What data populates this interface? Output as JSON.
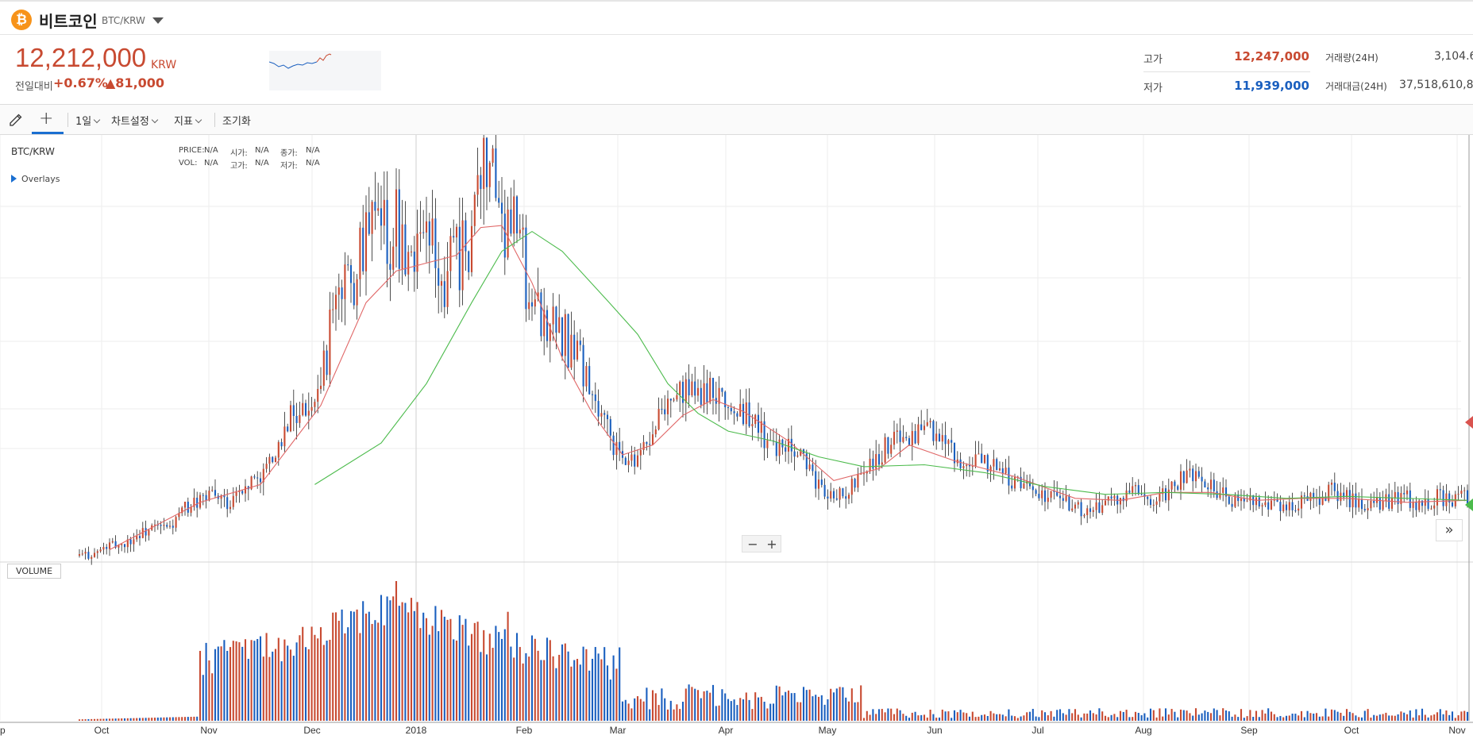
{
  "header": {
    "coin_name": "비트코인",
    "pair": "BTC/KRW",
    "logo_symbol": "₿"
  },
  "summary": {
    "price": "12,212,000",
    "unit": "KRW",
    "change_label": "전일대비",
    "change_pct": "+0.67%",
    "change_amt": "▲81,000",
    "high_label": "고가",
    "high_value": "12,247,000",
    "low_label": "저가",
    "low_value": "11,939,000",
    "volume_label": "거래량(24H)",
    "volume_value": "3,104.6",
    "amount_label": "거래대금(24H)",
    "amount_value": "37,518,610,8"
  },
  "toolbar": {
    "interval": "1일",
    "chart_settings": "차트설정",
    "indicators": "지표",
    "reset": "조기화"
  },
  "chart_panel": {
    "pair_label": "BTC/KRW",
    "overlays": "Overlays",
    "ohlc": {
      "price_label": "PRICE:",
      "price": "N/A",
      "open_label": "시가:",
      "open": "N/A",
      "close_label": "종가:",
      "close": "N/A",
      "vol_label": "VOL:",
      "vol": "N/A",
      "high_label": "고가:",
      "high": "N/A",
      "low_label": "저가:",
      "low": "N/A"
    },
    "zoom_out": "−",
    "zoom_in": "+",
    "scroll_right": "»",
    "volume_label": "VOLUME"
  },
  "colors": {
    "up": "#c84a31",
    "down": "#1a5fbf",
    "ma_short": "#e06666",
    "ma_long": "#4cbb4c",
    "grid": "#eeeeee"
  },
  "chart_data": {
    "type": "candlestick",
    "x_labels": [
      "ep",
      "Oct",
      "Nov",
      "Dec",
      "2018",
      "Feb",
      "Mar",
      "Apr",
      "May",
      "Jun",
      "Jul",
      "Aug",
      "Sep",
      "Oct",
      "Nov"
    ],
    "series": [
      {
        "type": "close-price (KRW millions)",
        "points": [
          [
            0,
            4.2
          ],
          [
            5,
            4.3
          ],
          [
            10,
            4.7
          ],
          [
            15,
            4.8
          ],
          [
            20,
            5.3
          ],
          [
            25,
            5.6
          ],
          [
            30,
            5.6
          ],
          [
            35,
            6.6
          ],
          [
            40,
            7.0
          ],
          [
            45,
            7.2
          ],
          [
            50,
            6.9
          ],
          [
            55,
            7.8
          ],
          [
            60,
            8.3
          ],
          [
            65,
            9.2
          ],
          [
            70,
            11.3
          ],
          [
            75,
            11.5
          ],
          [
            80,
            13.3
          ],
          [
            85,
            16.5
          ],
          [
            90,
            18.0
          ],
          [
            95,
            20.5
          ],
          [
            100,
            20.1
          ],
          [
            105,
            21.0
          ],
          [
            110,
            19.4
          ],
          [
            115,
            20.3
          ],
          [
            120,
            18.1
          ],
          [
            125,
            19.3
          ],
          [
            130,
            20.2
          ],
          [
            135,
            24.8
          ],
          [
            140,
            21.0
          ],
          [
            145,
            20.4
          ],
          [
            150,
            16.9
          ],
          [
            155,
            16.2
          ],
          [
            160,
            15.4
          ],
          [
            165,
            14.6
          ],
          [
            170,
            12.0
          ],
          [
            175,
            10.5
          ],
          [
            180,
            8.9
          ],
          [
            185,
            9.3
          ],
          [
            190,
            10.6
          ],
          [
            195,
            11.8
          ],
          [
            200,
            12.4
          ],
          [
            205,
            12.4
          ],
          [
            210,
            12.5
          ],
          [
            215,
            11.5
          ],
          [
            220,
            11.5
          ],
          [
            225,
            10.6
          ],
          [
            230,
            9.7
          ],
          [
            235,
            9.7
          ],
          [
            240,
            9.0
          ],
          [
            245,
            7.6
          ],
          [
            250,
            7.4
          ],
          [
            255,
            7.5
          ],
          [
            260,
            8.5
          ],
          [
            265,
            9.3
          ],
          [
            270,
            10.2
          ],
          [
            275,
            10.3
          ],
          [
            280,
            10.6
          ],
          [
            285,
            10.2
          ],
          [
            290,
            9.2
          ],
          [
            295,
            9.0
          ],
          [
            300,
            8.8
          ],
          [
            305,
            8.7
          ],
          [
            310,
            7.8
          ],
          [
            315,
            7.6
          ],
          [
            320,
            7.3
          ],
          [
            325,
            7.0
          ],
          [
            330,
            6.7
          ],
          [
            335,
            6.2
          ],
          [
            340,
            7.1
          ],
          [
            345,
            6.9
          ],
          [
            350,
            7.5
          ],
          [
            355,
            7.0
          ],
          [
            360,
            7.3
          ],
          [
            365,
            8.0
          ],
          [
            370,
            8.2
          ],
          [
            375,
            7.6
          ],
          [
            380,
            7.2
          ],
          [
            385,
            6.8
          ],
          [
            390,
            7.0
          ],
          [
            395,
            6.9
          ],
          [
            400,
            6.6
          ],
          [
            405,
            6.9
          ],
          [
            410,
            7.1
          ],
          [
            415,
            7.5
          ],
          [
            420,
            7.1
          ],
          [
            425,
            6.9
          ],
          [
            430,
            6.9
          ],
          [
            435,
            7.0
          ],
          [
            440,
            7.1
          ],
          [
            445,
            6.6
          ],
          [
            450,
            7.2
          ],
          [
            455,
            7.0
          ],
          [
            460,
            7.2
          ]
        ]
      },
      {
        "type": "ma_short",
        "name": "",
        "points": [
          [
            10,
            4.5
          ],
          [
            40,
            6.9
          ],
          [
            60,
            7.8
          ],
          [
            80,
            11.8
          ],
          [
            95,
            17.0
          ],
          [
            105,
            18.6
          ],
          [
            115,
            19.0
          ],
          [
            125,
            19.4
          ],
          [
            133,
            20.8
          ],
          [
            140,
            20.9
          ],
          [
            150,
            18.0
          ],
          [
            160,
            14.2
          ],
          [
            170,
            11.4
          ],
          [
            180,
            9.3
          ],
          [
            190,
            9.8
          ],
          [
            200,
            11.3
          ],
          [
            210,
            12.1
          ],
          [
            220,
            11.5
          ],
          [
            235,
            10.0
          ],
          [
            250,
            8.0
          ],
          [
            265,
            8.6
          ],
          [
            275,
            9.8
          ],
          [
            290,
            9.0
          ],
          [
            310,
            8.2
          ],
          [
            330,
            7.1
          ],
          [
            345,
            7.0
          ],
          [
            360,
            7.4
          ],
          [
            375,
            7.4
          ],
          [
            390,
            7.0
          ],
          [
            405,
            7.1
          ],
          [
            420,
            7.1
          ],
          [
            440,
            6.9
          ],
          [
            460,
            7.0
          ]
        ]
      },
      {
        "type": "ma_long",
        "name": "",
        "points": [
          [
            78,
            7.8
          ],
          [
            100,
            9.9
          ],
          [
            115,
            12.9
          ],
          [
            130,
            17.0
          ],
          [
            140,
            19.6
          ],
          [
            150,
            20.6
          ],
          [
            160,
            19.6
          ],
          [
            175,
            17.1
          ],
          [
            185,
            15.4
          ],
          [
            195,
            12.9
          ],
          [
            205,
            11.4
          ],
          [
            215,
            10.5
          ],
          [
            230,
            10.0
          ],
          [
            245,
            9.2
          ],
          [
            260,
            8.7
          ],
          [
            280,
            8.8
          ],
          [
            300,
            8.4
          ],
          [
            320,
            7.7
          ],
          [
            340,
            7.3
          ],
          [
            360,
            7.4
          ],
          [
            380,
            7.3
          ],
          [
            400,
            7.1
          ],
          [
            420,
            7.2
          ],
          [
            440,
            7.1
          ],
          [
            460,
            7.0
          ]
        ]
      }
    ],
    "volume": {
      "note": "relative bar heights (0-1)",
      "peak_index": 105
    },
    "yaxis_unit": "",
    "legend": "none"
  }
}
